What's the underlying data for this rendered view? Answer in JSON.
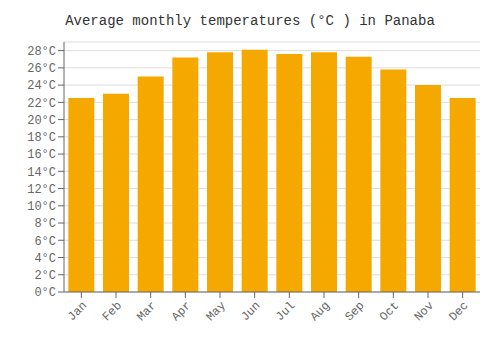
{
  "chart_data": {
    "type": "bar",
    "title": "Average monthly temperatures (°C ) in Panaba",
    "categories": [
      "Jan",
      "Feb",
      "Mar",
      "Apr",
      "May",
      "Jun",
      "Jul",
      "Aug",
      "Sep",
      "Oct",
      "Nov",
      "Dec"
    ],
    "values": [
      22.5,
      23.0,
      25.0,
      27.2,
      27.8,
      28.1,
      27.6,
      27.8,
      27.3,
      25.8,
      24.0,
      22.5
    ],
    "color": "#F5A800",
    "ylim": [
      0,
      29
    ],
    "yticks": [
      {
        "value": 0,
        "label": "0°C"
      },
      {
        "value": 2,
        "label": "2°C"
      },
      {
        "value": 4,
        "label": "4°C"
      },
      {
        "value": 6,
        "label": "6°C"
      },
      {
        "value": 8,
        "label": "8°C"
      },
      {
        "value": 10,
        "label": "10°C"
      },
      {
        "value": 12,
        "label": "12°C"
      },
      {
        "value": 14,
        "label": "14°C"
      },
      {
        "value": 16,
        "label": "16°C"
      },
      {
        "value": 18,
        "label": "18°C"
      },
      {
        "value": 20,
        "label": "20°C"
      },
      {
        "value": 22,
        "label": "22°C"
      },
      {
        "value": 24,
        "label": "24°C"
      },
      {
        "value": 26,
        "label": "26°C"
      },
      {
        "value": 28,
        "label": "28°C"
      }
    ],
    "grid": true
  }
}
